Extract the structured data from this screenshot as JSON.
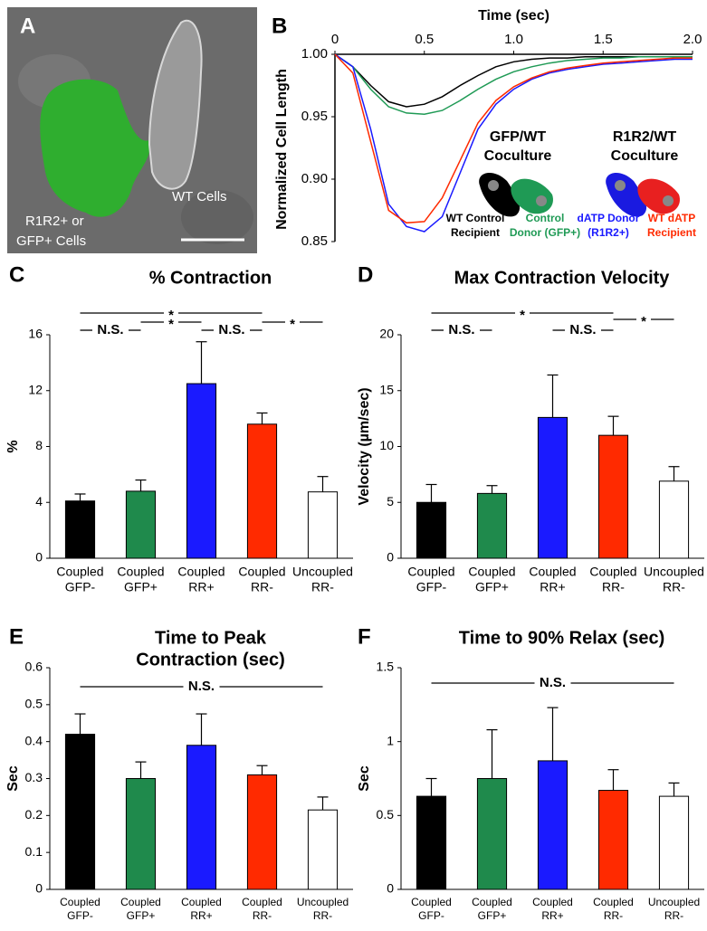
{
  "panel_a": {
    "panel": "A",
    "cell_label": [
      "R1R2+ or",
      "GFP+ Cells"
    ],
    "wt_label": "WT Cells"
  },
  "chart_data": [
    {
      "type": "line",
      "panel": "B",
      "xlabel": "Time (sec)",
      "ylabel": "Normalized Cell Length",
      "xlim": [
        0,
        2
      ],
      "xticks": [
        0,
        0.5,
        {
          "value": 1,
          "label": "1.0"
        },
        1.5,
        {
          "value": 2,
          "label": "2.0"
        }
      ],
      "ylim": [
        0.85,
        1.0
      ],
      "yticks": [
        0.85,
        {
          "value": 0.9,
          "label": "0.90"
        },
        0.95,
        {
          "value": 1,
          "label": "1.00"
        }
      ],
      "x": [
        0,
        0.1,
        0.2,
        0.3,
        0.4,
        0.5,
        0.6,
        0.7,
        0.8,
        0.9,
        1.0,
        1.1,
        1.2,
        1.3,
        1.4,
        1.5,
        1.6,
        1.7,
        1.8,
        1.9,
        2.0
      ],
      "legend_groups": [
        {
          "title": [
            "GFP/WT",
            "Coculture"
          ]
        },
        {
          "title": [
            "R1R2/WT",
            "Coculture"
          ]
        }
      ],
      "series": [
        {
          "name": [
            "WT Control",
            "Recipient"
          ],
          "color": "#000000",
          "values": [
            1.0,
            0.99,
            0.975,
            0.962,
            0.958,
            0.96,
            0.966,
            0.975,
            0.983,
            0.99,
            0.994,
            0.996,
            0.997,
            0.997,
            0.998,
            0.998,
            0.998,
            0.998,
            0.998,
            0.998,
            0.998
          ]
        },
        {
          "name": [
            "Control",
            "Donor (GFP+)"
          ],
          "color": "#1f9a55",
          "values": [
            1.0,
            0.99,
            0.972,
            0.958,
            0.953,
            0.952,
            0.955,
            0.963,
            0.972,
            0.98,
            0.986,
            0.99,
            0.993,
            0.995,
            0.996,
            0.997,
            0.997,
            0.998,
            0.998,
            0.998,
            0.998
          ]
        },
        {
          "name": [
            "dATP Donor",
            "(R1R2+)"
          ],
          "color": "#1a1aff",
          "values": [
            1.0,
            0.99,
            0.94,
            0.88,
            0.862,
            0.858,
            0.87,
            0.905,
            0.94,
            0.96,
            0.972,
            0.98,
            0.985,
            0.988,
            0.99,
            0.992,
            0.993,
            0.994,
            0.995,
            0.996,
            0.996
          ]
        },
        {
          "name": [
            "WT dATP",
            "Recipient"
          ],
          "color": "#ff2a00",
          "values": [
            1.0,
            0.985,
            0.93,
            0.875,
            0.865,
            0.866,
            0.885,
            0.915,
            0.945,
            0.963,
            0.974,
            0.981,
            0.986,
            0.989,
            0.991,
            0.993,
            0.994,
            0.995,
            0.996,
            0.997,
            0.997
          ]
        }
      ]
    },
    {
      "type": "bar",
      "panel": "C",
      "title": [
        "% Contraction"
      ],
      "ylabel": "%",
      "categories": [
        [
          "Coupled",
          "GFP-"
        ],
        [
          "Coupled",
          "GFP+"
        ],
        [
          "Coupled",
          "RR+"
        ],
        [
          "Coupled",
          "RR-"
        ],
        [
          "Uncoupled",
          "RR-"
        ]
      ],
      "colors": [
        "#000000",
        "#1f8a4c",
        "#1a1aff",
        "#ff2a00",
        "#ffffff"
      ],
      "values": [
        4.1,
        4.8,
        12.5,
        9.6,
        4.75
      ],
      "errors": [
        0.5,
        0.8,
        3.0,
        0.8,
        1.1
      ],
      "ylim": [
        0,
        16
      ],
      "yticks": [
        0,
        4,
        8,
        12,
        16
      ],
      "annotations": [
        "*",
        "N.S.",
        "*",
        "N.S.",
        "*"
      ]
    },
    {
      "type": "bar",
      "panel": "D",
      "title": [
        "Max Contraction Velocity"
      ],
      "ylabel": "Velocity (µm/sec)",
      "categories": [
        [
          "Coupled",
          "GFP-"
        ],
        [
          "Coupled",
          "GFP+"
        ],
        [
          "Coupled",
          "RR+"
        ],
        [
          "Coupled",
          "RR-"
        ],
        [
          "Uncoupled",
          "RR-"
        ]
      ],
      "colors": [
        "#000000",
        "#1f8a4c",
        "#1a1aff",
        "#ff2a00",
        "#ffffff"
      ],
      "values": [
        5.0,
        5.8,
        12.6,
        11.0,
        6.9
      ],
      "errors": [
        1.6,
        0.7,
        3.8,
        1.7,
        1.3
      ],
      "ylim": [
        0,
        20
      ],
      "yticks": [
        0,
        5,
        10,
        15,
        20
      ],
      "annotations": [
        "N.S.",
        "*",
        "N.S.",
        "*"
      ]
    },
    {
      "type": "bar",
      "panel": "E",
      "title": [
        "Time to Peak",
        "Contraction (sec)"
      ],
      "ylabel": "Sec",
      "categories": [
        [
          "Coupled",
          "GFP-"
        ],
        [
          "Coupled",
          "GFP+"
        ],
        [
          "Coupled",
          "RR+"
        ],
        [
          "Coupled",
          "RR-"
        ],
        [
          "Uncoupled",
          "RR-"
        ]
      ],
      "colors": [
        "#000000",
        "#1f8a4c",
        "#1a1aff",
        "#ff2a00",
        "#ffffff"
      ],
      "values": [
        0.42,
        0.3,
        0.39,
        0.31,
        0.215
      ],
      "errors": [
        0.055,
        0.045,
        0.085,
        0.025,
        0.035
      ],
      "ylim": [
        0,
        0.6
      ],
      "yticks": [
        0,
        0.1,
        0.2,
        0.3,
        0.4,
        0.5,
        0.6
      ],
      "annotations": [
        "N.S."
      ]
    },
    {
      "type": "bar",
      "panel": "F",
      "title": [
        "Time to 90% Relax (sec)"
      ],
      "ylabel": "Sec",
      "categories": [
        [
          "Coupled",
          "GFP-"
        ],
        [
          "Coupled",
          "GFP+"
        ],
        [
          "Coupled",
          "RR+"
        ],
        [
          "Coupled",
          "RR-"
        ],
        [
          "Uncoupled",
          "RR-"
        ]
      ],
      "colors": [
        "#000000",
        "#1f8a4c",
        "#1a1aff",
        "#ff2a00",
        "#ffffff"
      ],
      "values": [
        0.63,
        0.75,
        0.87,
        0.67,
        0.63
      ],
      "errors": [
        0.12,
        0.33,
        0.36,
        0.14,
        0.09
      ],
      "ylim": [
        0,
        1.5
      ],
      "yticks": [
        0,
        0.5,
        1,
        1.5
      ],
      "annotations": [
        "N.S."
      ]
    }
  ]
}
